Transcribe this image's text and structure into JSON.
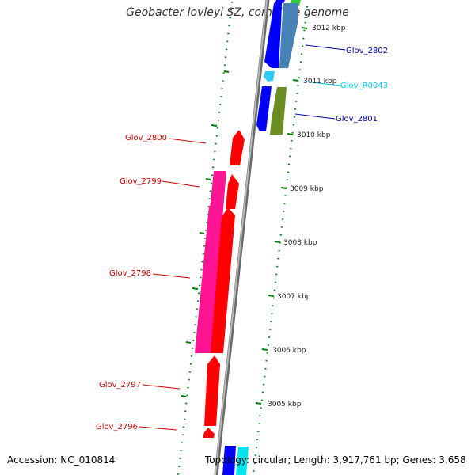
{
  "title": "Geobacter lovleyi SZ, complete genome",
  "footer": {
    "accession": "Accession: NC_010814",
    "topology": "Topology: circular; Length: 3,917,761 bp; Genes: 3,658"
  },
  "colors": {
    "backbone": "#8c8c8c",
    "ticks": "#008000",
    "cds_red": "#ff0000",
    "cds_pink": "#ff1493",
    "cds_blue": "#0000ff",
    "cds_steel": "#4682b4",
    "cds_olive": "#6b8e23",
    "rna_cyan": "#00bfff",
    "green": "#32cd32",
    "label_red": "#cc0000",
    "label_blue": "#0000aa",
    "label_cyan": "#00ccee"
  },
  "kbp_labels": [
    "3012 kbp",
    "3011 kbp",
    "3010 kbp",
    "3009 kbp",
    "3008 kbp",
    "3007 kbp",
    "3006 kbp",
    "3005 kbp"
  ],
  "genes": [
    {
      "id": "g2802",
      "label": "Glov_2802",
      "strand": "forward",
      "color": "label_blue"
    },
    {
      "id": "gR0043",
      "label": "Glov_R0043",
      "strand": "forward",
      "color": "label_cyan"
    },
    {
      "id": "g2801",
      "label": "Glov_2801",
      "strand": "forward",
      "color": "label_blue"
    },
    {
      "id": "g2800",
      "label": "Glov_2800",
      "strand": "reverse",
      "color": "label_red"
    },
    {
      "id": "g2799",
      "label": "Glov_2799",
      "strand": "reverse",
      "color": "label_red"
    },
    {
      "id": "g2798",
      "label": "Glov_2798",
      "strand": "reverse",
      "color": "label_red"
    },
    {
      "id": "g2797",
      "label": "Glov_2797",
      "strand": "reverse",
      "color": "label_red"
    },
    {
      "id": "g2796",
      "label": "Glov_2796",
      "strand": "reverse",
      "color": "label_red"
    }
  ]
}
